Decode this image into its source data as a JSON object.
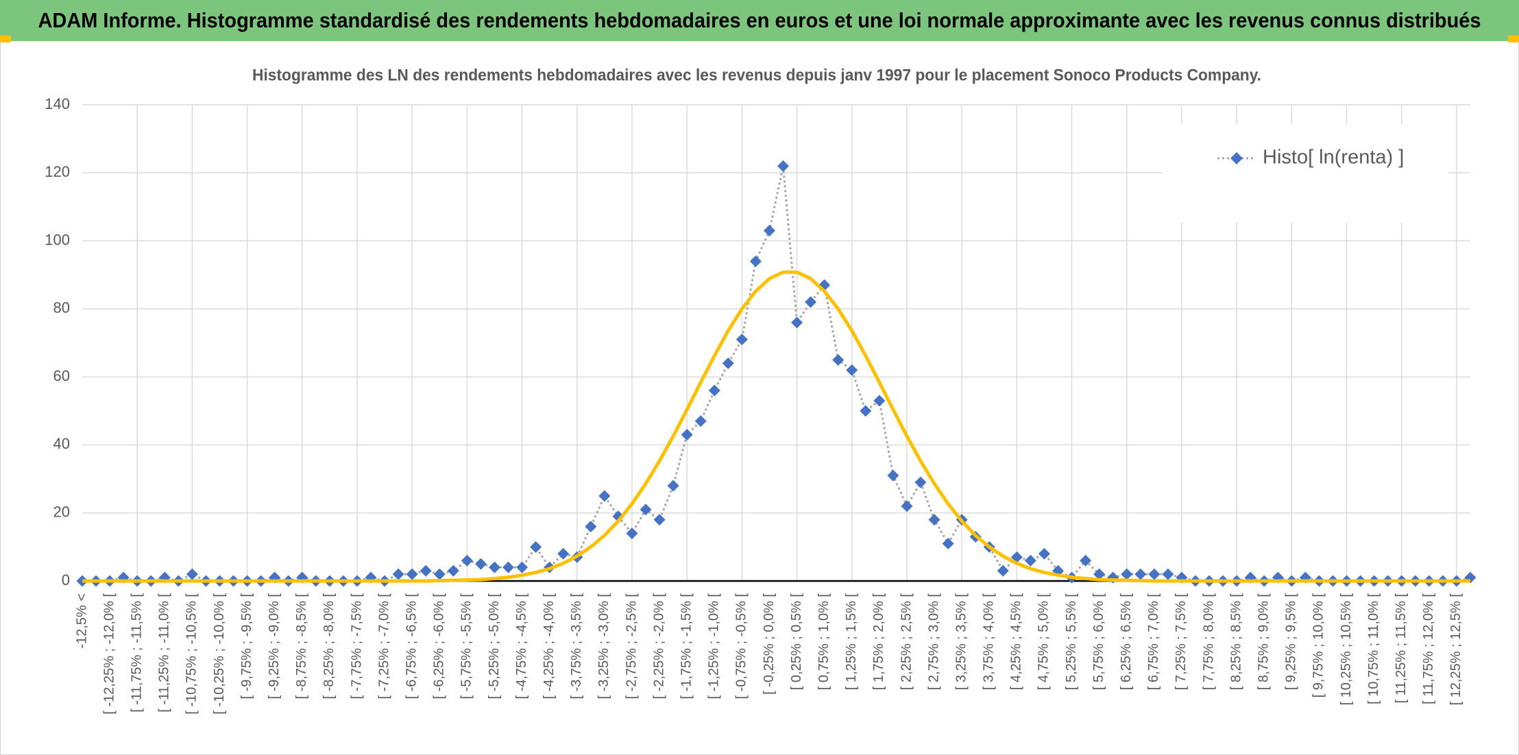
{
  "chart_data": {
    "type": "line",
    "title": "ADAM Informe. Histogramme standardisé des rendements hebdomadaires en euros et une loi normale approximante avec les revenus connus distribués",
    "subtitle": "Histogramme des LN des rendements hebdomadaires avec les revenus depuis janv 1997 pour le placement Sonoco Products Company.",
    "categories": [
      "-12,5% <",
      null,
      "[ -12,25% ; -12,0% [",
      null,
      "[ -11,75% ; -11,5% [",
      null,
      "[ -11,25% ; -11,0% [",
      null,
      "[ -10,75% ; -10,5% [",
      null,
      "[ -10,25% ; -10,0% [",
      null,
      "[ -9,75% ; -9,5% [",
      null,
      "[ -9,25% ; -9,0% [",
      null,
      "[ -8,75% ; -8,5% [",
      null,
      "[ -8,25% ; -8,0% [",
      null,
      "[ -7,75% ; -7,5% [",
      null,
      "[ -7,25% ; -7,0% [",
      null,
      "[ -6,75% ; -6,5% [",
      null,
      "[ -6,25% ; -6,0% [",
      null,
      "[ -5,75% ; -5,5% [",
      null,
      "[ -5,25% ; -5,0% [",
      null,
      "[ -4,75% ; -4,5% [",
      null,
      "[ -4,25% ; -4,0% [",
      null,
      "[ -3,75% ; -3,5% [",
      null,
      "[ -3,25% ; -3,0% [",
      null,
      "[ -2,75% ; -2,5% [",
      null,
      "[ -2,25% ; -2,0% [",
      null,
      "[ -1,75% ; -1,5% [",
      null,
      "[ -1,25% ; -1,0% [",
      null,
      "[ -0,75% ; -0,5% [",
      null,
      "[ -0,25% ; 0,0% [",
      null,
      "[ 0,25% ; 0,5% [",
      null,
      "[ 0,75% ; 1,0% [",
      null,
      "[ 1,25% ; 1,5% [",
      null,
      "[ 1,75% ; 2,0% [",
      null,
      "[ 2,25% ; 2,5% [",
      null,
      "[ 2,75% ; 3,0% [",
      null,
      "[ 3,25% ; 3,5% [",
      null,
      "[ 3,75% ; 4,0% [",
      null,
      "[ 4,25% ; 4,5% [",
      null,
      "[ 4,75% ; 5,0% [",
      null,
      "[ 5,25% ; 5,5% [",
      null,
      "[ 5,75% ; 6,0% [",
      null,
      "[ 6,25% ; 6,5% [",
      null,
      "[ 6,75% ; 7,0% [",
      null,
      "[ 7,25% ; 7,5% [",
      null,
      "[ 7,75% ; 8,0% [",
      null,
      "[ 8,25% ; 8,5% [",
      null,
      "[ 8,75% ; 9,0% [",
      null,
      "[ 9,25% ; 9,5% [",
      null,
      "[ 9,75% ; 10,0% [",
      null,
      "[ 10,25% ; 10,5% [",
      null,
      "[ 10,75% ; 11,0% [",
      null,
      "[ 11,25% ; 11,5% [",
      null,
      "[ 11,75% ; 12,0% [",
      null,
      "[ 12,25% ; 12,5% [",
      null
    ],
    "series": [
      {
        "name": "Histo[ ln(renta) ]",
        "color": "#4472c4",
        "line_color": "#a5a5a5",
        "values": [
          0,
          0,
          0,
          1,
          0,
          0,
          1,
          0,
          2,
          0,
          0,
          0,
          0,
          0,
          1,
          0,
          1,
          0,
          0,
          0,
          0,
          1,
          0,
          2,
          2,
          3,
          2,
          3,
          6,
          5,
          4,
          4,
          4,
          10,
          4,
          8,
          7,
          16,
          25,
          19,
          14,
          21,
          18,
          28,
          43,
          47,
          56,
          64,
          71,
          94,
          103,
          122,
          76,
          82,
          87,
          65,
          62,
          50,
          53,
          31,
          22,
          29,
          18,
          11,
          18,
          13,
          10,
          3,
          7,
          6,
          8,
          3,
          1,
          6,
          2,
          1,
          2,
          2,
          2,
          2,
          1,
          0,
          0,
          0,
          0,
          1,
          0,
          1,
          0,
          1,
          0,
          0,
          0,
          0,
          0,
          0,
          0,
          0,
          0,
          0,
          0,
          1
        ]
      },
      {
        "color": "#ffc000",
        "values": [
          0,
          0,
          0,
          0,
          0,
          0,
          0,
          0,
          0,
          0,
          0,
          0,
          0,
          0,
          0,
          0,
          0,
          0,
          0,
          0,
          0,
          0,
          0,
          0,
          0,
          0,
          0.1,
          0.2,
          0.3,
          0.4,
          0.7,
          1.1,
          1.7,
          2.5,
          3.6,
          5.2,
          7.3,
          10.0,
          13.4,
          17.6,
          22.7,
          28.6,
          35.3,
          42.6,
          50.4,
          58.4,
          66.2,
          73.6,
          80.0,
          85.2,
          88.9,
          90.8,
          90.8,
          88.9,
          85.2,
          80.0,
          73.6,
          66.2,
          58.4,
          50.4,
          42.6,
          35.3,
          28.6,
          22.7,
          17.6,
          13.4,
          10.0,
          7.3,
          5.2,
          3.6,
          2.5,
          1.7,
          1.1,
          0.7,
          0.4,
          0.3,
          0.2,
          0.1,
          0,
          0,
          0,
          0,
          0,
          0,
          0,
          0,
          0,
          0,
          0,
          0,
          0,
          0,
          0,
          0,
          0,
          0,
          0,
          0,
          0,
          0,
          0,
          0
        ]
      }
    ],
    "ylim": [
      0,
      140
    ],
    "yticks": [
      0,
      20,
      40,
      60,
      80,
      100,
      120,
      140
    ],
    "grid": true,
    "legend": "top-right"
  }
}
